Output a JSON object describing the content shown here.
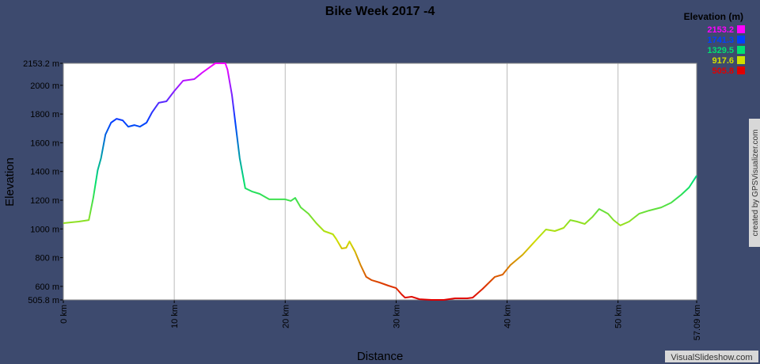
{
  "chart_data": {
    "type": "line",
    "title": "Bike Week 2017 -4",
    "x_label": "Distance",
    "y_label": "Elevation",
    "legend_title": "Elevation (m)",
    "color_scale": [
      {
        "value": 2153.2,
        "color": "#ff00ff"
      },
      {
        "value": 1741.3,
        "color": "#0040ff"
      },
      {
        "value": 1329.5,
        "color": "#00e070"
      },
      {
        "value": 917.6,
        "color": "#d0e000"
      },
      {
        "value": 505.8,
        "color": "#e00000"
      }
    ],
    "x": [
      0,
      1.4,
      2.3,
      2.7,
      3.1,
      3.4,
      3.8,
      4.3,
      4.8,
      5.35,
      5.85,
      6.4,
      6.9,
      7.5,
      8.0,
      8.6,
      9.3,
      10.0,
      10.8,
      11.8,
      12.5,
      13.2,
      13.7,
      14.6,
      14.8,
      15.2,
      15.55,
      15.9,
      16.4,
      16.99,
      17.7,
      18.56,
      19.1,
      20.0,
      20.5,
      20.9,
      21.4,
      22.1,
      22.8,
      23.5,
      24.3,
      24.6,
      25.1,
      25.5,
      25.8,
      26.3,
      26.8,
      27.3,
      27.8,
      28.5,
      29.3,
      30.0,
      30.5,
      30.8,
      31.4,
      32.1,
      33.2,
      34.3,
      35.3,
      36.4,
      36.9,
      37.8,
      38.9,
      39.6,
      40.3,
      41.4,
      42.5,
      43.5,
      44.3,
      45.1,
      45.7,
      46.3,
      47.0,
      47.7,
      48.3,
      49.1,
      49.6,
      50.2,
      51.0,
      51.9,
      52.8,
      53.9,
      54.8,
      55.7,
      56.4,
      57.09
    ],
    "values": [
      1040,
      1051,
      1062,
      1216,
      1409,
      1492,
      1657,
      1740,
      1767,
      1756,
      1712,
      1723,
      1712,
      1740,
      1812,
      1878,
      1889,
      1960,
      2032,
      2043,
      2087,
      2126,
      2153.2,
      2153.2,
      2109,
      1933,
      1712,
      1492,
      1283,
      1261,
      1244,
      1206,
      1206,
      1206,
      1195,
      1216,
      1150,
      1106,
      1040,
      985,
      963,
      930,
      864,
      869,
      913,
      842,
      748,
      666,
      643,
      627,
      605,
      588,
      544,
      522,
      528,
      511,
      505.8,
      506,
      517,
      517,
      522,
      583,
      666,
      682,
      748,
      820,
      913,
      996,
      985,
      1007,
      1062,
      1051,
      1035,
      1084,
      1139,
      1106,
      1062,
      1024,
      1051,
      1106,
      1128,
      1150,
      1183,
      1238,
      1288,
      1370
    ],
    "xlim": [
      0,
      57.09
    ],
    "ylim": [
      505.8,
      2153.2
    ],
    "xticks": [
      {
        "value": 0,
        "label": "0 km"
      },
      {
        "value": 10,
        "label": "10 km"
      },
      {
        "value": 20,
        "label": "20 km"
      },
      {
        "value": 30,
        "label": "30 km"
      },
      {
        "value": 40,
        "label": "40 km"
      },
      {
        "value": 50,
        "label": "50 km"
      },
      {
        "value": 57.09,
        "label": "57.09 km"
      }
    ],
    "yticks": [
      {
        "value": 505.8,
        "label": "505.8 m"
      },
      {
        "value": 600,
        "label": "600 m"
      },
      {
        "value": 800,
        "label": "800 m"
      },
      {
        "value": 1000,
        "label": "1000 m"
      },
      {
        "value": 1200,
        "label": "1200 m"
      },
      {
        "value": 1400,
        "label": "1400 m"
      },
      {
        "value": 1600,
        "label": "1600 m"
      },
      {
        "value": 1800,
        "label": "1800 m"
      },
      {
        "value": 2000,
        "label": "2000 m"
      },
      {
        "value": 2153.2,
        "label": "2153.2 m"
      }
    ],
    "grid": "x",
    "credit": "created by GPSVisualizer.com",
    "watermark": "VisualSlideshow.com"
  }
}
